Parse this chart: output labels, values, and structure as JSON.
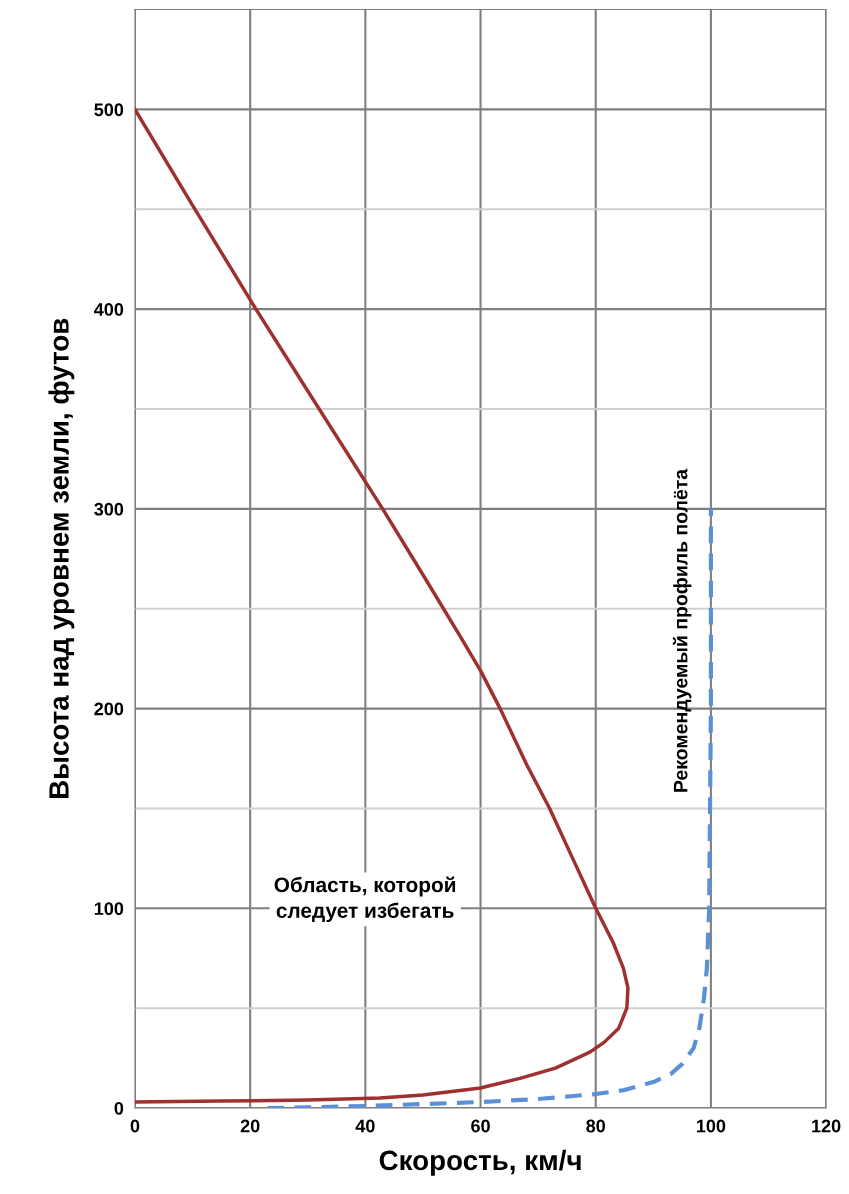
{
  "chart_data": {
    "type": "line",
    "xlabel": "Скорость, км/ч",
    "ylabel": "Высота над уровнем земли, футов",
    "xlim": [
      0,
      120
    ],
    "xticks": [
      0,
      20,
      40,
      60,
      80,
      100,
      120
    ],
    "ylim": [
      0,
      550
    ],
    "yticks": [
      0,
      {
        "value": 50,
        "label": null
      },
      100,
      {
        "value": 150,
        "label": null
      },
      200,
      {
        "value": 250,
        "label": null
      },
      300,
      {
        "value": 350,
        "label": null
      },
      400,
      {
        "value": 450,
        "label": null
      },
      500
    ],
    "grid": true,
    "legend": false,
    "marker": "none",
    "series": [
      {
        "color": "#9e3030",
        "line_style": "solid",
        "x": [
          0,
          10,
          21,
          30,
          43,
          50,
          56.5,
          60,
          63.4,
          68,
          72,
          76,
          80,
          83,
          84.8,
          85.6,
          85.4,
          84,
          81.5,
          79,
          76,
          73,
          67,
          60,
          50,
          42.5,
          30,
          15,
          0
        ],
        "values": [
          500,
          452,
          400,
          359,
          300,
          267,
          236,
          219,
          200,
          172,
          150,
          125,
          100,
          83,
          70,
          60,
          50,
          40,
          33,
          28,
          24,
          20,
          15,
          10,
          6.5,
          5,
          4,
          3.5,
          3
        ]
      },
      {
        "name": "Рекомендуемый профиль полёта",
        "color": "#5b8fd6",
        "line_style": "dashed",
        "x": [
          23,
          30,
          40,
          50,
          60,
          70,
          80,
          85,
          90,
          93,
          95,
          97,
          98,
          98.8,
          99.3,
          99.7,
          100,
          100
        ],
        "values": [
          0,
          0.3,
          1,
          2,
          3,
          4.5,
          7,
          9,
          13,
          17,
          22,
          30,
          40,
          55,
          70,
          100,
          200,
          300
        ]
      }
    ],
    "annotations": [
      "Область, которой\nследует избегать"
    ]
  }
}
